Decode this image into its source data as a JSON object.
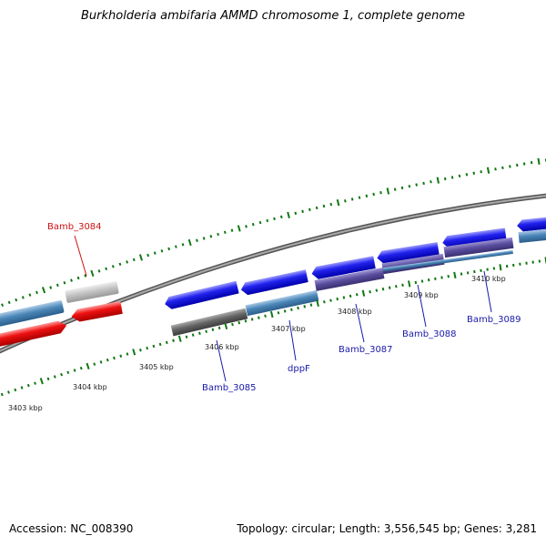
{
  "title": "Burkholderia ambifaria AMMD chromosome 1, complete genome",
  "footer": {
    "accession": "Accession: NC_008390",
    "summary": "Topology: circular; Length: 3,556,545 bp; Genes: 3,281"
  },
  "colors": {
    "forward_cds": "#1010e8",
    "reverse_cds": "#ee1010",
    "selected_gene": "#cc1111",
    "gene_label": "#1a1aaa",
    "tick": "#117711",
    "backbone": "#888888",
    "track_blue": "#4a86b8",
    "track_purple": "#5a4ea0",
    "track_gray": "#bbbbbb",
    "track_dark": "#666666"
  },
  "scale_labels": [
    "3403 kbp",
    "3404 kbp",
    "3405 kbp",
    "3406 kbp",
    "3407 kbp",
    "3408 kbp",
    "3409 kbp",
    "3410 kbp"
  ],
  "genes": [
    {
      "name": "Bamb_3084",
      "selected": true
    },
    {
      "name": "Bamb_3085",
      "selected": false
    },
    {
      "name": "dppF",
      "selected": false
    },
    {
      "name": "Bamb_3087",
      "selected": false
    },
    {
      "name": "Bamb_3088",
      "selected": false
    },
    {
      "name": "Bamb_3089",
      "selected": false
    }
  ]
}
